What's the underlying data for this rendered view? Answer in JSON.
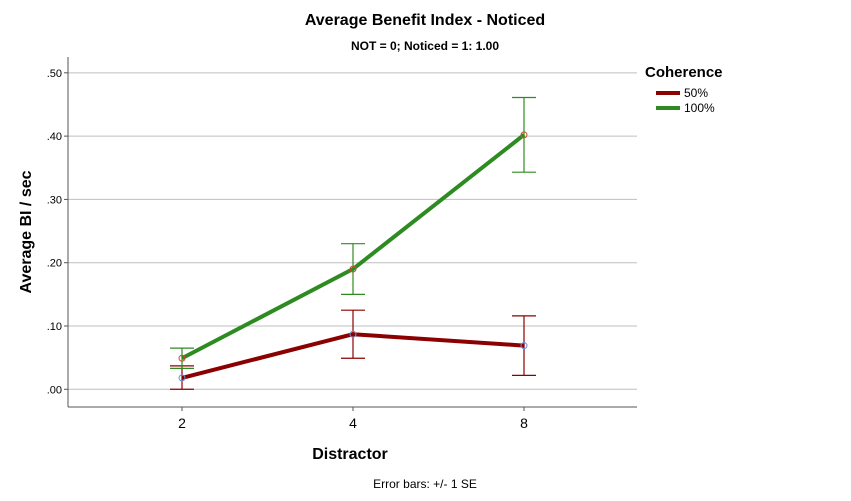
{
  "chart_data": {
    "type": "line",
    "title": "Average Benefit Index - Noticed",
    "subtitle": "NOT = 0; Noticed = 1: 1.00",
    "xlabel": "Distractor",
    "ylabel": "Average BI / sec",
    "categories": [
      "2",
      "4",
      "8"
    ],
    "y_ticks": [
      ".00",
      ".10",
      ".20",
      ".30",
      ".40",
      ".50"
    ],
    "y_tick_values": [
      0,
      0.1,
      0.2,
      0.3,
      0.4,
      0.5
    ],
    "ylim": [
      -0.028,
      0.525
    ],
    "grid": true,
    "legend": {
      "title": "Coherence",
      "placement": "right"
    },
    "series": [
      {
        "name": "50%",
        "color": "#8b0000",
        "values": [
          0.018,
          0.087,
          0.069
        ],
        "error_upper": [
          0.037,
          0.125,
          0.116
        ],
        "error_lower": [
          0.0,
          0.049,
          0.022
        ]
      },
      {
        "name": "100%",
        "color": "#2e8b22",
        "values": [
          0.049,
          0.19,
          0.402
        ],
        "error_upper": [
          0.065,
          0.23,
          0.461
        ],
        "error_lower": [
          0.033,
          0.15,
          0.343
        ]
      }
    ],
    "footnote": "Error bars: +/- 1 SE"
  }
}
